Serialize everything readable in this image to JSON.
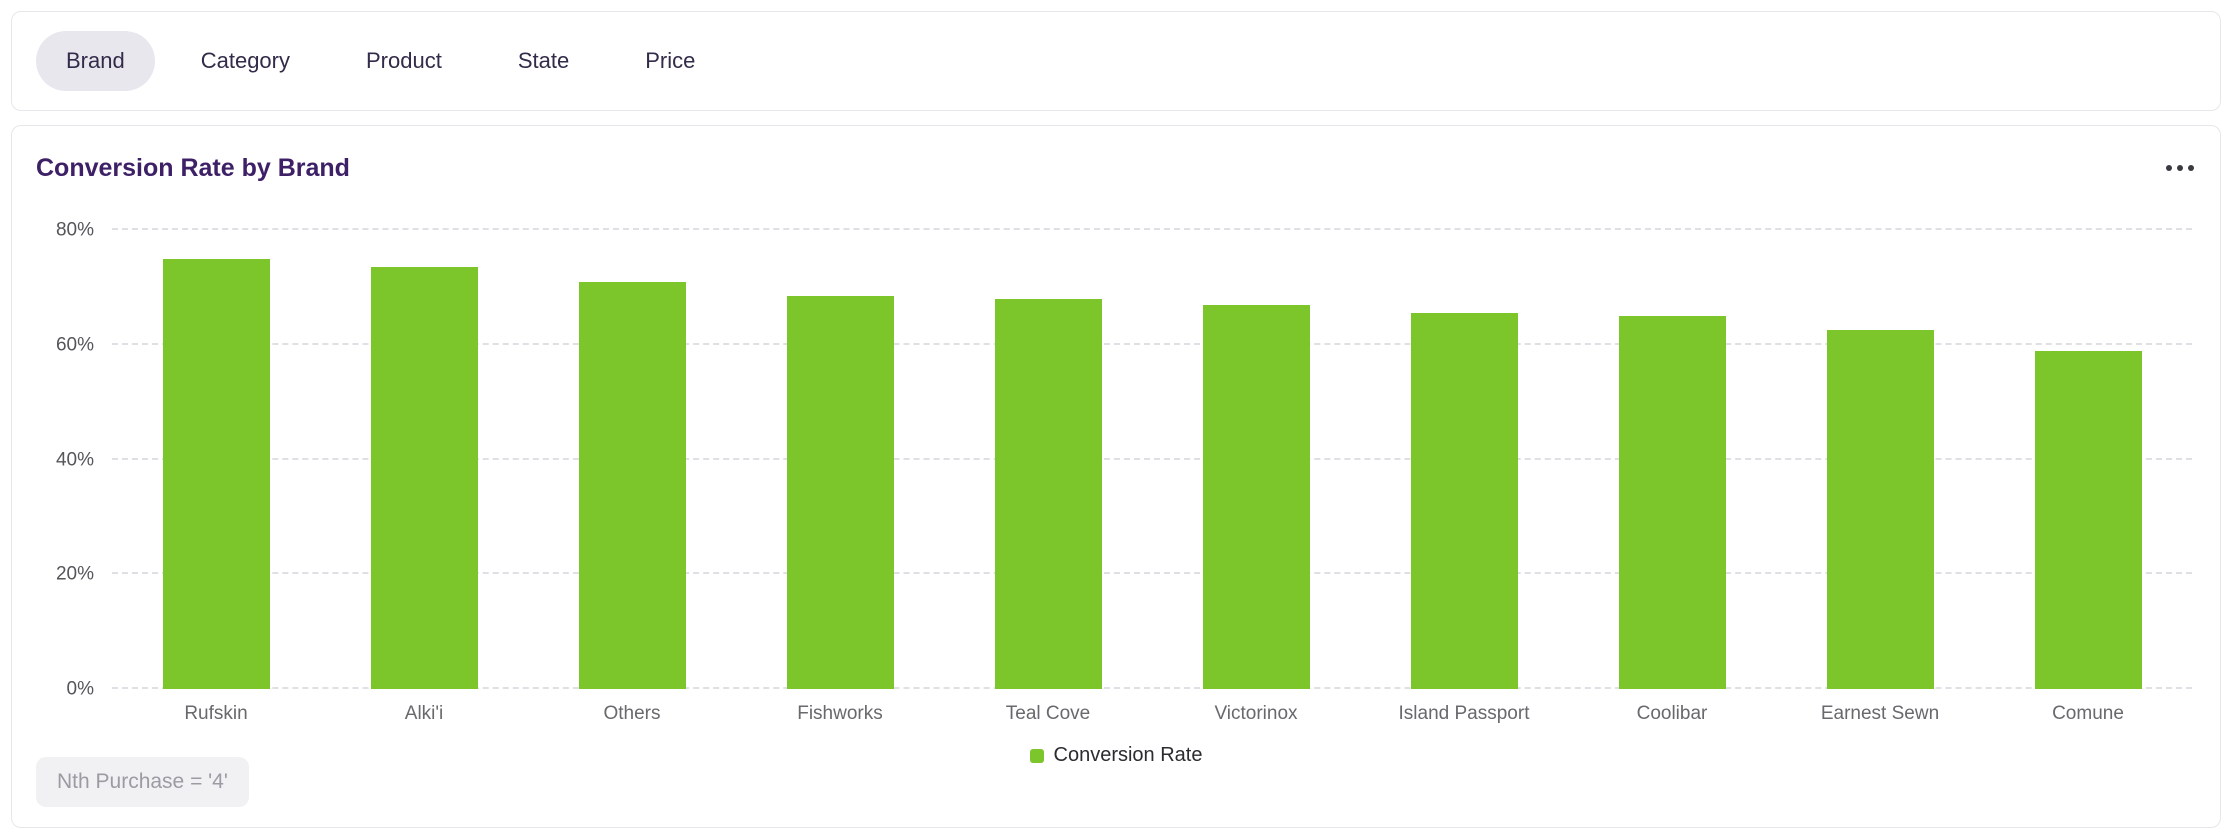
{
  "tabs": {
    "items": [
      {
        "label": "Brand",
        "selected": true
      },
      {
        "label": "Category",
        "selected": false
      },
      {
        "label": "Product",
        "selected": false
      },
      {
        "label": "State",
        "selected": false
      },
      {
        "label": "Price",
        "selected": false
      }
    ]
  },
  "card": {
    "title": "Conversion Rate by Brand",
    "menu_icon": "ellipsis-icon",
    "filter_chip": "Nth Purchase = '4'"
  },
  "chart_data": {
    "type": "bar",
    "title": "Conversion Rate by Brand",
    "categories": [
      "Rufskin",
      "Alki'i",
      "Others",
      "Fishworks",
      "Teal Cove",
      "Victorinox",
      "Island Passport",
      "Coolibar",
      "Earnest Sewn",
      "Comune"
    ],
    "series": [
      {
        "name": "Conversion Rate",
        "values": [
          75,
          73.5,
          71,
          68.5,
          68,
          67,
          65.5,
          65,
          62.5,
          59
        ]
      }
    ],
    "xlabel": "",
    "ylabel": "",
    "ylim": [
      0,
      80
    ],
    "yticks": [
      0,
      20,
      40,
      60,
      80
    ],
    "ytick_suffix": "%",
    "grid": "horizontal-dashed",
    "legend_position": "bottom",
    "bar_color": "#7cc62b",
    "legend": [
      {
        "label": "Conversion Rate",
        "color": "#7cc62b"
      }
    ]
  },
  "colors": {
    "accent_green": "#7cc62b",
    "title_purple": "#3d2066",
    "tab_text": "#322b49",
    "tab_selected_bg": "#e9e7ee",
    "grid_line": "#dfdfe4",
    "axis_text": "#55555a",
    "chip_bg": "#f1f1f4",
    "chip_text": "#9b9ba3"
  }
}
